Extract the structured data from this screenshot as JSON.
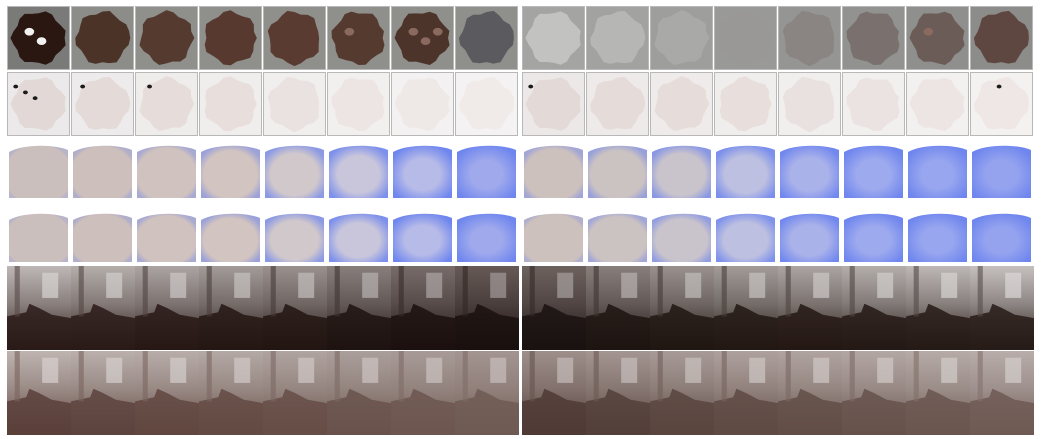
{
  "figure": {
    "description_text": "",
    "panels": [
      {
        "id": "left",
        "rows": [
          {
            "kind": "dark-disc",
            "tiles": [
              {
                "blob": "#2a1712",
                "bg": "#7a7a78",
                "spots": 2
              },
              {
                "blob": "#4b3328",
                "bg": "#8c8c88",
                "spots": 0
              },
              {
                "blob": "#553a30",
                "bg": "#8f8f8b",
                "spots": 0
              },
              {
                "blob": "#57392f",
                "bg": "#8f8f8b",
                "spots": 0
              },
              {
                "blob": "#5a3b31",
                "bg": "#8f8f8b",
                "spots": 0
              },
              {
                "blob": "#553a30",
                "bg": "#8f8f8b",
                "spots": 1
              },
              {
                "blob": "#4d342b",
                "bg": "#8f8f8b",
                "spots": 3
              },
              {
                "blob": "#5b5b5f",
                "bg": "#8f8f8b",
                "spots": 0
              }
            ]
          },
          {
            "kind": "light-disc",
            "tiles": [
              {
                "blob": "#e2d8d6",
                "bg": "#ece9ea",
                "spots": 3
              },
              {
                "blob": "#e4dad8",
                "bg": "#eeebec",
                "spots": 1
              },
              {
                "blob": "#e6dcda",
                "bg": "#efecec",
                "spots": 1
              },
              {
                "blob": "#e8dfdd",
                "bg": "#f0eded",
                "spots": 0
              },
              {
                "blob": "#eae2e0",
                "bg": "#f1eeee",
                "spots": 0
              },
              {
                "blob": "#ece5e3",
                "bg": "#f2efef",
                "spots": 0
              },
              {
                "blob": "#eee8e6",
                "bg": "#f3f1f1",
                "spots": 0
              },
              {
                "blob": "#f0eae8",
                "bg": "#f4f2f2",
                "spots": 0
              }
            ]
          },
          {
            "kind": "blue-depth",
            "tiles": [
              {
                "fg": "#cbbfbd",
                "blue": 0.1
              },
              {
                "fg": "#cdbfbb",
                "blue": 0.2
              },
              {
                "fg": "#d0c2be",
                "blue": 0.3
              },
              {
                "fg": "#d2c4c0",
                "blue": 0.45
              },
              {
                "fg": "#d1c8cc",
                "blue": 0.6
              },
              {
                "fg": "#c9c6dc",
                "blue": 0.75
              },
              {
                "fg": "#b7bbe8",
                "blue": 0.9
              },
              {
                "fg": "#9fa9ec",
                "blue": 1.0
              }
            ]
          },
          {
            "kind": "blue-depth-2",
            "tiles": [
              {
                "fg": "#cbbfbd",
                "blue": 0.1
              },
              {
                "fg": "#cdbfbb",
                "blue": 0.2
              },
              {
                "fg": "#d0c2be",
                "blue": 0.3
              },
              {
                "fg": "#d2c4c0",
                "blue": 0.45
              },
              {
                "fg": "#d1c8cc",
                "blue": 0.6
              },
              {
                "fg": "#c9c6dc",
                "blue": 0.75
              },
              {
                "fg": "#b7bbe8",
                "blue": 0.9
              },
              {
                "fg": "#9fa9ec",
                "blue": 1.0
              }
            ]
          },
          {
            "kind": "room-photo",
            "tiles": [
              {
                "light": 0.75,
                "dark": "#2a1a17"
              },
              {
                "light": 0.7,
                "dark": "#2a1a17"
              },
              {
                "light": 0.65,
                "dark": "#271815"
              },
              {
                "light": 0.6,
                "dark": "#241613"
              },
              {
                "light": 0.55,
                "dark": "#221512"
              },
              {
                "light": 0.45,
                "dark": "#1f1310"
              },
              {
                "light": 0.35,
                "dark": "#1c110f"
              },
              {
                "light": 0.25,
                "dark": "#1a100e"
              }
            ]
          },
          {
            "kind": "room-depth",
            "tiles": [
              {
                "light": 0.75,
                "dark": "#5b403a"
              },
              {
                "light": 0.72,
                "dark": "#5d433d"
              },
              {
                "light": 0.7,
                "dark": "#60463f"
              },
              {
                "light": 0.66,
                "dark": "#634a43"
              },
              {
                "light": 0.62,
                "dark": "#664e47"
              },
              {
                "light": 0.58,
                "dark": "#69524b"
              },
              {
                "light": 0.55,
                "dark": "#6c564f"
              },
              {
                "light": 0.5,
                "dark": "#6f5a53"
              }
            ]
          }
        ]
      },
      {
        "id": "right",
        "rows": [
          {
            "kind": "dark-disc",
            "tiles": [
              {
                "blob": "#c2c2c0",
                "bg": "#a4a4a2",
                "spots": 0
              },
              {
                "blob": "#b6b6b4",
                "bg": "#a2a2a0",
                "spots": 0
              },
              {
                "blob": "#a9a9a7",
                "bg": "#9e9e9c",
                "spots": 0
              },
              {
                "blob": "#9a9896",
                "bg": "#999997",
                "spots": 0
              },
              {
                "blob": "#8a8583",
                "bg": "#959593",
                "spots": 0
              },
              {
                "blob": "#7a716e",
                "bg": "#929290",
                "spots": 0
              },
              {
                "blob": "#6b5c57",
                "bg": "#8f8f8d",
                "spots": 1
              },
              {
                "blob": "#5d4740",
                "bg": "#8c8c8a",
                "spots": 0
              }
            ]
          },
          {
            "kind": "light-disc",
            "tiles": [
              {
                "blob": "#e3d9d7",
                "bg": "#ece8e8",
                "spots": 1
              },
              {
                "blob": "#e5dbd9",
                "bg": "#eeeaea",
                "spots": 0
              },
              {
                "blob": "#e6dddb",
                "bg": "#efebeb",
                "spots": 0
              },
              {
                "blob": "#e8dfdd",
                "bg": "#f0eded",
                "spots": 0
              },
              {
                "blob": "#e9e1df",
                "bg": "#f1eeee",
                "spots": 0
              },
              {
                "blob": "#ebe3e1",
                "bg": "#f2efef",
                "spots": 0
              },
              {
                "blob": "#ede5e3",
                "bg": "#f3f0f0",
                "spots": 0
              },
              {
                "blob": "#eee7e5",
                "bg": "#f4f1f1",
                "spots": 1
              }
            ]
          },
          {
            "kind": "blue-depth",
            "tiles": [
              {
                "fg": "#cdc1be",
                "blue": 0.35
              },
              {
                "fg": "#cbc2c2",
                "blue": 0.45
              },
              {
                "fg": "#c9c3cc",
                "blue": 0.6
              },
              {
                "fg": "#bdc0e0",
                "blue": 0.75
              },
              {
                "fg": "#aab2ea",
                "blue": 0.85
              },
              {
                "fg": "#9eaaee",
                "blue": 0.95
              },
              {
                "fg": "#98a6ef",
                "blue": 1.0
              },
              {
                "fg": "#95a3ef",
                "blue": 1.0
              }
            ]
          },
          {
            "kind": "blue-depth-2",
            "tiles": [
              {
                "fg": "#cdc1be",
                "blue": 0.2
              },
              {
                "fg": "#cbc2c2",
                "blue": 0.35
              },
              {
                "fg": "#c9c3cc",
                "blue": 0.5
              },
              {
                "fg": "#bdc0e0",
                "blue": 0.7
              },
              {
                "fg": "#aab2ea",
                "blue": 0.85
              },
              {
                "fg": "#9eaaee",
                "blue": 0.95
              },
              {
                "fg": "#98a6ef",
                "blue": 1.0
              },
              {
                "fg": "#95a3ef",
                "blue": 1.0
              }
            ]
          },
          {
            "kind": "room-photo",
            "tiles": [
              {
                "light": 0.3,
                "dark": "#1a1210"
              },
              {
                "light": 0.45,
                "dark": "#1d1411"
              },
              {
                "light": 0.55,
                "dark": "#201612"
              },
              {
                "light": 0.6,
                "dark": "#221713"
              },
              {
                "light": 0.65,
                "dark": "#241814"
              },
              {
                "light": 0.7,
                "dark": "#251915"
              },
              {
                "light": 0.75,
                "dark": "#261a16"
              },
              {
                "light": 0.8,
                "dark": "#271b17"
              }
            ]
          },
          {
            "kind": "room-depth",
            "tiles": [
              {
                "light": 0.45,
                "dark": "#4f3a35"
              },
              {
                "light": 0.5,
                "dark": "#543f39"
              },
              {
                "light": 0.55,
                "dark": "#59443e"
              },
              {
                "light": 0.6,
                "dark": "#5e4943"
              },
              {
                "light": 0.62,
                "dark": "#624d47"
              },
              {
                "light": 0.65,
                "dark": "#66514b"
              },
              {
                "light": 0.68,
                "dark": "#6a554f"
              },
              {
                "light": 0.7,
                "dark": "#6e5953"
              }
            ]
          }
        ]
      }
    ]
  }
}
